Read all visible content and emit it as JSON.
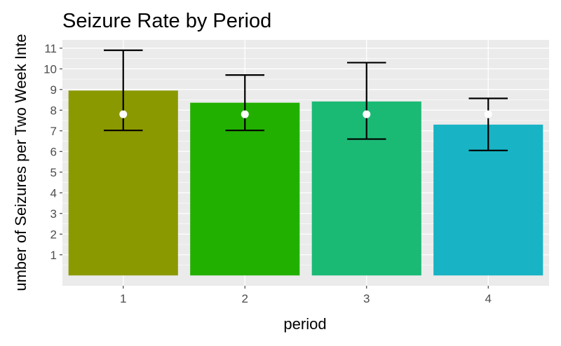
{
  "chart_data": {
    "type": "bar",
    "title": "Seizure Rate by Period",
    "xlabel": "period",
    "ylabel": "umber of Seizures per Two Week Inte",
    "categories": [
      "1",
      "2",
      "3",
      "4"
    ],
    "series": [
      {
        "values": [
          8.95,
          8.36,
          8.42,
          7.3
        ],
        "point": [
          7.8,
          7.8,
          7.8,
          7.8
        ],
        "error_low": [
          7.02,
          7.02,
          6.6,
          6.05
        ],
        "error_high": [
          10.9,
          9.7,
          10.3,
          8.57
        ]
      }
    ],
    "ylim": [
      -0.5,
      11.4
    ],
    "yticks": [
      1,
      2,
      3,
      4,
      5,
      6,
      7,
      8,
      9,
      10,
      11
    ],
    "grid": true,
    "bar_colors": [
      "#8B9900",
      "#22B000",
      "#1ABA75",
      "#18B3C4"
    ],
    "panel_color": "#EBEBEB",
    "grid_color": "#FFFFFF",
    "error_bar_color": "#000000",
    "point_color": "#FFFFFF"
  }
}
